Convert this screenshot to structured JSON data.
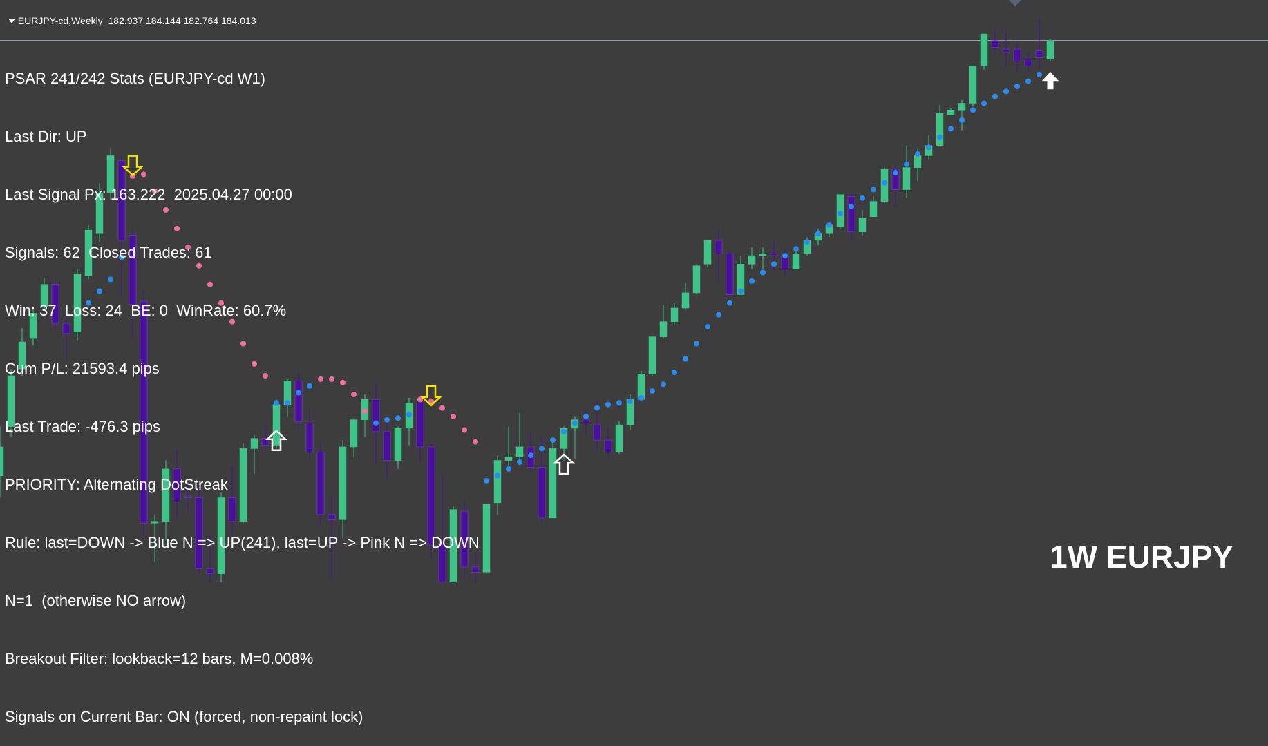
{
  "header": {
    "symbol_timeframe": "EURJPY-cd,Weekly",
    "ohlc": "182.937 184.144 182.764 184.013"
  },
  "stats": {
    "title": "PSAR 241/242 Stats (EURJPY-cd W1)",
    "lines": [
      "Last Dir: UP",
      "Last Signal Px: 163.222  2025.04.27 00:00",
      "Signals: 62  Closed Trades: 61",
      "Win: 37  Loss: 24  BE: 0  WinRate: 60.7%",
      "Cum P/L: 21593.4 pips",
      "Last Trade: -476.3 pips",
      "PRIORITY: Alternating DotStreak",
      "Rule: last=DOWN -> Blue N => UP(241), last=UP -> Pink N => DOWN",
      "N=1  (otherwise NO arrow)",
      "Breakout Filter: lookback=12 bars, M=0.008%",
      "Signals on Current Bar: ON (forced, non-repaint lock)"
    ]
  },
  "watermark": "1W EURJPY",
  "colors": {
    "background": "#3d3d3d",
    "bull": "#3ec486",
    "bear": "#4b0f9e",
    "psar_up": "#2a8cf0",
    "psar_down": "#f06fa3",
    "arrow_down": "#f5e600",
    "arrow_up": "#ffffff",
    "price_line": "#8f9bb3"
  },
  "chart_data": {
    "type": "candlestick",
    "symbol": "EURJPY-cd",
    "timeframe": "Weekly",
    "ylim": [
      152.0,
      186.4
    ],
    "current_price": 184.013,
    "candles": [
      [
        158.3,
        160.0,
        157.0,
        161.2
      ],
      [
        161.2,
        164.2,
        160.6,
        164.6
      ],
      [
        164.6,
        166.2,
        164.2,
        167.0
      ],
      [
        166.4,
        167.9,
        166.0,
        168.3
      ],
      [
        168.3,
        169.6,
        168.1,
        170.0
      ],
      [
        169.6,
        167.3,
        166.9,
        170.0
      ],
      [
        167.3,
        166.7,
        165.2,
        167.9
      ],
      [
        166.8,
        170.2,
        166.3,
        170.5
      ],
      [
        170.1,
        172.8,
        169.9,
        173.1
      ],
      [
        172.6,
        175.0,
        172.1,
        175.6
      ],
      [
        175.0,
        177.2,
        174.6,
        177.6
      ],
      [
        176.9,
        172.2,
        168.8,
        177.3
      ],
      [
        172.5,
        168.4,
        166.4,
        172.9
      ],
      [
        168.6,
        155.5,
        154.6,
        169.2
      ],
      [
        155.5,
        155.6,
        153.2,
        156.0
      ],
      [
        155.6,
        158.7,
        154.5,
        159.2
      ],
      [
        158.7,
        156.8,
        155.8,
        159.8
      ],
      [
        157.1,
        157.0,
        156.1,
        157.8
      ],
      [
        157.0,
        152.8,
        152.6,
        157.8
      ],
      [
        152.8,
        152.5,
        152.0,
        154.8
      ],
      [
        152.5,
        157.0,
        151.9,
        157.3
      ],
      [
        157.0,
        155.6,
        154.8,
        158.8
      ],
      [
        155.6,
        159.9,
        155.5,
        160.2
      ],
      [
        159.9,
        160.5,
        158.4,
        160.7
      ],
      [
        160.5,
        160.1,
        159.7,
        161.3
      ],
      [
        160.1,
        162.5,
        159.9,
        162.8
      ],
      [
        162.5,
        163.9,
        161.8,
        164.0
      ],
      [
        163.9,
        161.5,
        161.0,
        164.4
      ],
      [
        161.4,
        159.7,
        159.3,
        162.2
      ],
      [
        159.7,
        156.0,
        155.3,
        160.3
      ],
      [
        156.0,
        155.7,
        152.1,
        157.1
      ],
      [
        155.7,
        160.0,
        154.6,
        160.4
      ],
      [
        160.0,
        161.6,
        159.4,
        161.7
      ],
      [
        161.6,
        162.8,
        160.6,
        163.1
      ],
      [
        162.8,
        160.9,
        159.0,
        163.7
      ],
      [
        160.9,
        159.2,
        158.1,
        161.6
      ],
      [
        159.2,
        161.1,
        158.7,
        161.2
      ],
      [
        161.1,
        162.6,
        160.1,
        162.9
      ],
      [
        162.6,
        160.0,
        159.1,
        162.8
      ],
      [
        160.0,
        154.2,
        153.4,
        160.2
      ],
      [
        154.2,
        152.0,
        151.4,
        158.4
      ],
      [
        152.0,
        156.3,
        151.5,
        156.5
      ],
      [
        156.2,
        152.9,
        152.2,
        156.8
      ],
      [
        152.9,
        152.6,
        151.2,
        153.8
      ],
      [
        152.6,
        156.6,
        152.5,
        156.6
      ],
      [
        156.7,
        159.2,
        156.0,
        159.5
      ],
      [
        159.2,
        159.4,
        158.9,
        161.2
      ],
      [
        159.4,
        160.0,
        159.3,
        162.0
      ],
      [
        160.0,
        158.8,
        158.5,
        160.9
      ],
      [
        158.8,
        155.8,
        155.5,
        160.6
      ],
      [
        155.8,
        159.9,
        155.8,
        160.6
      ],
      [
        159.9,
        161.1,
        159.2,
        161.2
      ],
      [
        161.1,
        161.6,
        159.3,
        161.8
      ],
      [
        161.6,
        161.4,
        160.7,
        162.0
      ],
      [
        161.3,
        160.4,
        159.7,
        162.7
      ],
      [
        160.4,
        159.7,
        159.4,
        161.1
      ],
      [
        159.7,
        161.3,
        159.6,
        161.5
      ],
      [
        161.3,
        162.8,
        161.0,
        163.1
      ],
      [
        162.8,
        164.3,
        162.7,
        164.5
      ],
      [
        164.3,
        166.5,
        164.2,
        166.5
      ],
      [
        166.5,
        167.4,
        166.4,
        168.4
      ],
      [
        167.4,
        168.2,
        167.2,
        168.5
      ],
      [
        168.2,
        169.1,
        168.1,
        169.7
      ],
      [
        169.1,
        170.7,
        169.0,
        170.8
      ],
      [
        170.8,
        172.2,
        170.6,
        172.2
      ],
      [
        172.2,
        171.4,
        169.8,
        172.9
      ],
      [
        171.4,
        169.0,
        168.8,
        171.7
      ],
      [
        169.0,
        170.8,
        169.0,
        171.3
      ],
      [
        170.8,
        171.3,
        170.5,
        171.8
      ],
      [
        171.3,
        171.4,
        170.5,
        171.8
      ],
      [
        171.4,
        171.3,
        170.4,
        172.3
      ],
      [
        171.3,
        170.5,
        170.1,
        171.7
      ],
      [
        170.5,
        171.4,
        170.5,
        171.7
      ],
      [
        171.4,
        172.2,
        171.3,
        172.4
      ],
      [
        172.2,
        172.6,
        171.9,
        172.9
      ],
      [
        172.6,
        173.1,
        172.4,
        173.3
      ],
      [
        173.0,
        174.9,
        172.9,
        174.9
      ],
      [
        174.8,
        172.7,
        172.2,
        175.0
      ],
      [
        172.7,
        173.5,
        172.5,
        174.0
      ],
      [
        173.6,
        174.5,
        173.6,
        174.8
      ],
      [
        174.5,
        176.4,
        174.4,
        176.5
      ],
      [
        176.4,
        175.2,
        174.2,
        176.6
      ],
      [
        175.2,
        176.5,
        174.7,
        177.8
      ],
      [
        176.5,
        177.2,
        175.7,
        177.6
      ],
      [
        177.2,
        177.8,
        177.0,
        178.4
      ],
      [
        177.8,
        179.7,
        177.8,
        180.2
      ],
      [
        179.6,
        179.9,
        179.7,
        180.0
      ],
      [
        179.9,
        180.3,
        178.7,
        180.5
      ],
      [
        180.3,
        182.5,
        180.1,
        182.5
      ],
      [
        182.5,
        184.4,
        182.3,
        184.4
      ],
      [
        184.0,
        183.6,
        183.2,
        184.7
      ],
      [
        183.5,
        183.3,
        182.5,
        184.7
      ],
      [
        183.5,
        182.8,
        182.2,
        184.0
      ],
      [
        182.9,
        182.5,
        182.2,
        183.3
      ],
      [
        183.4,
        183.0,
        182.3,
        185.3
      ],
      [
        182.9,
        184.0,
        182.8,
        184.1
      ]
    ],
    "psar": [
      [
        8,
        168.5,
        "up"
      ],
      [
        9,
        169.2,
        "up"
      ],
      [
        10,
        169.9,
        "up"
      ],
      [
        11,
        171.2,
        "up"
      ],
      [
        12,
        176.0,
        "down"
      ],
      [
        13,
        176.1,
        "down"
      ],
      [
        14,
        175.1,
        "down"
      ],
      [
        15,
        174.0,
        "down"
      ],
      [
        16,
        172.9,
        "down"
      ],
      [
        17,
        171.8,
        "down"
      ],
      [
        18,
        170.7,
        "down"
      ],
      [
        19,
        169.6,
        "down"
      ],
      [
        20,
        168.5,
        "down"
      ],
      [
        21,
        167.4,
        "down"
      ],
      [
        22,
        166.1,
        "down"
      ],
      [
        23,
        164.9,
        "down"
      ],
      [
        24,
        164.2,
        "down"
      ],
      [
        25,
        162.6,
        "up"
      ],
      [
        26,
        162.6,
        "up"
      ],
      [
        27,
        163.2,
        "up"
      ],
      [
        28,
        163.6,
        "up"
      ],
      [
        29,
        164.0,
        "down"
      ],
      [
        30,
        164.0,
        "down"
      ],
      [
        31,
        163.8,
        "down"
      ],
      [
        32,
        163.1,
        "down"
      ],
      [
        33,
        162.1,
        "down"
      ],
      [
        34,
        161.4,
        "up"
      ],
      [
        35,
        161.6,
        "up"
      ],
      [
        36,
        161.7,
        "up"
      ],
      [
        37,
        161.9,
        "up"
      ],
      [
        38,
        162.8,
        "down"
      ],
      [
        39,
        162.7,
        "down"
      ],
      [
        40,
        162.3,
        "down"
      ],
      [
        41,
        161.8,
        "down"
      ],
      [
        42,
        161.0,
        "down"
      ],
      [
        43,
        160.3,
        "down"
      ],
      [
        44,
        158.0,
        "up"
      ],
      [
        45,
        158.3,
        "up"
      ],
      [
        46,
        158.7,
        "up"
      ],
      [
        47,
        159.1,
        "up"
      ],
      [
        48,
        159.5,
        "up"
      ],
      [
        49,
        159.9,
        "up"
      ],
      [
        50,
        160.4,
        "up"
      ],
      [
        51,
        160.9,
        "up"
      ],
      [
        52,
        161.4,
        "up"
      ],
      [
        53,
        161.8,
        "up"
      ],
      [
        54,
        162.3,
        "up"
      ],
      [
        55,
        162.5,
        "up"
      ],
      [
        56,
        162.6,
        "up"
      ],
      [
        57,
        162.7,
        "up"
      ],
      [
        58,
        162.9,
        "up"
      ],
      [
        59,
        163.3,
        "up"
      ],
      [
        60,
        163.7,
        "up"
      ],
      [
        61,
        164.4,
        "up"
      ],
      [
        62,
        165.2,
        "up"
      ],
      [
        63,
        166.1,
        "up"
      ],
      [
        64,
        167.1,
        "up"
      ],
      [
        65,
        167.8,
        "up"
      ],
      [
        66,
        168.5,
        "up"
      ],
      [
        67,
        169.2,
        "up"
      ],
      [
        68,
        169.8,
        "up"
      ],
      [
        69,
        170.3,
        "up"
      ],
      [
        70,
        170.8,
        "up"
      ],
      [
        71,
        171.3,
        "up"
      ],
      [
        72,
        171.7,
        "up"
      ],
      [
        73,
        172.1,
        "up"
      ],
      [
        74,
        172.6,
        "up"
      ],
      [
        75,
        173.1,
        "up"
      ],
      [
        76,
        173.8,
        "up"
      ],
      [
        77,
        174.2,
        "up"
      ],
      [
        78,
        174.7,
        "up"
      ],
      [
        79,
        175.2,
        "up"
      ],
      [
        80,
        175.6,
        "up"
      ],
      [
        81,
        176.2,
        "up"
      ],
      [
        82,
        176.7,
        "up"
      ],
      [
        83,
        177.3,
        "up"
      ],
      [
        84,
        177.7,
        "up"
      ],
      [
        85,
        178.3,
        "up"
      ],
      [
        86,
        178.8,
        "up"
      ],
      [
        87,
        179.3,
        "up"
      ],
      [
        88,
        179.9,
        "up"
      ],
      [
        89,
        180.3,
        "up"
      ],
      [
        90,
        180.7,
        "up"
      ],
      [
        91,
        181.0,
        "up"
      ],
      [
        92,
        181.3,
        "up"
      ],
      [
        93,
        181.6,
        "up"
      ],
      [
        94,
        182.0,
        "up"
      ]
    ],
    "signals": [
      {
        "bar": 12,
        "dir": "down",
        "price": 176.3
      },
      {
        "bar": 25,
        "dir": "up",
        "price": 160.7
      },
      {
        "bar": 39,
        "dir": "down",
        "price": 162.7
      },
      {
        "bar": 51,
        "dir": "up",
        "price": 159.3
      },
      {
        "bar": 95,
        "dir": "up",
        "price": 181.8
      }
    ]
  }
}
